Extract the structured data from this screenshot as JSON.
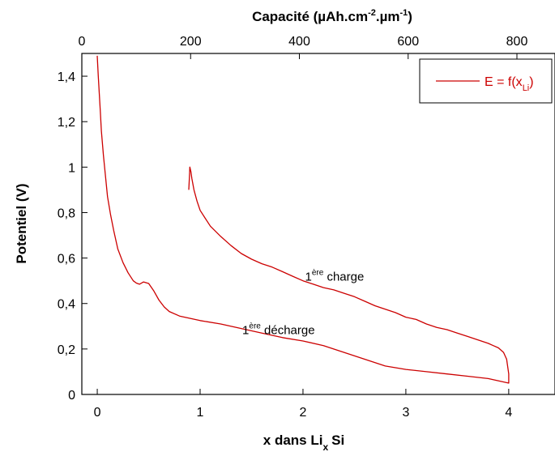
{
  "chart_data": {
    "type": "line",
    "xlabel": {
      "main": "x dans Li",
      "sub": "x",
      "rest": "Si"
    },
    "ylabel": "Potentiel (V)",
    "top_xlabel": {
      "text1": "Capacité (µAh.cm",
      "sup1": "-2",
      "text2": ".µm",
      "sup2": "-1",
      "text3": ")"
    },
    "xlim": [
      -0.15,
      4.45
    ],
    "ylim": [
      0,
      1.5
    ],
    "top_xlim": [
      0,
      870
    ],
    "x_ticks": [
      "0",
      "1",
      "2",
      "3",
      "4"
    ],
    "y_ticks": [
      "0",
      "0,2",
      "0,4",
      "0,6",
      "0,8",
      "1",
      "1,2",
      "1,4"
    ],
    "top_ticks": [
      "0",
      "200",
      "400",
      "600",
      "800"
    ],
    "grid": false,
    "legend": {
      "placement": "top-right",
      "label": "E = f(x",
      "label_sub": "Li",
      "label_end": ")"
    },
    "annotations": [
      {
        "main": "1",
        "sup": "ère",
        "rest": " charge",
        "x": 2.02,
        "y": 0.5
      },
      {
        "main": "1",
        "sup": "ère",
        "rest": " décharge",
        "x": 1.41,
        "y": 0.265
      }
    ],
    "series": [
      {
        "name": "E = f(x_Li)",
        "color": "#cc0000",
        "x": [
          0,
          0.01,
          0.02,
          0.03,
          0.04,
          0.06,
          0.08,
          0.1,
          0.13,
          0.16,
          0.2,
          0.25,
          0.3,
          0.35,
          0.38,
          0.41,
          0.45,
          0.5,
          0.55,
          0.6,
          0.65,
          0.7,
          0.8,
          0.9,
          1.0,
          1.2,
          1.4,
          1.6,
          1.8,
          2.0,
          2.2,
          2.4,
          2.6,
          2.8,
          3.0,
          3.2,
          3.4,
          3.6,
          3.8,
          4.0,
          4.0,
          3.98,
          3.95,
          3.9,
          3.85,
          3.8,
          3.7,
          3.6,
          3.5,
          3.4,
          3.3,
          3.2,
          3.1,
          3.0,
          2.9,
          2.8,
          2.7,
          2.6,
          2.5,
          2.4,
          2.3,
          2.2,
          2.1,
          2.0,
          1.9,
          1.8,
          1.7,
          1.6,
          1.5,
          1.4,
          1.3,
          1.2,
          1.1,
          1.05,
          1.0,
          0.97,
          0.94,
          0.92,
          0.91,
          0.9,
          0.895,
          0.89
        ],
        "y": [
          1.49,
          1.4,
          1.32,
          1.24,
          1.16,
          1.05,
          0.96,
          0.87,
          0.79,
          0.72,
          0.64,
          0.58,
          0.535,
          0.5,
          0.49,
          0.485,
          0.495,
          0.488,
          0.455,
          0.415,
          0.385,
          0.365,
          0.345,
          0.335,
          0.325,
          0.31,
          0.29,
          0.27,
          0.25,
          0.235,
          0.215,
          0.185,
          0.155,
          0.125,
          0.11,
          0.1,
          0.09,
          0.08,
          0.07,
          0.05,
          0.09,
          0.155,
          0.185,
          0.205,
          0.215,
          0.225,
          0.24,
          0.255,
          0.27,
          0.285,
          0.295,
          0.31,
          0.33,
          0.34,
          0.36,
          0.375,
          0.39,
          0.41,
          0.43,
          0.445,
          0.46,
          0.47,
          0.485,
          0.5,
          0.52,
          0.54,
          0.56,
          0.575,
          0.595,
          0.62,
          0.655,
          0.695,
          0.74,
          0.775,
          0.81,
          0.85,
          0.9,
          0.95,
          0.98,
          1.0,
          0.95,
          0.9
        ]
      }
    ]
  }
}
